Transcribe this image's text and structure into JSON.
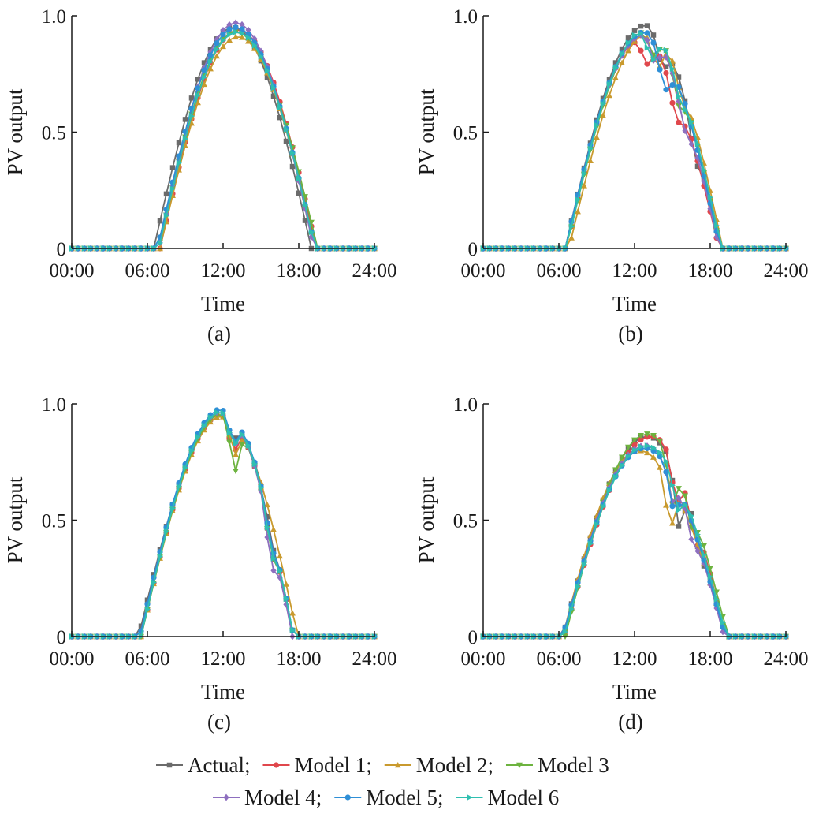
{
  "chart_data": [
    {
      "panel": "(a)",
      "type": "line",
      "xlabel": "Time",
      "ylabel": "PV output",
      "xlim": [
        0,
        24
      ],
      "ylim": [
        0,
        1.0
      ],
      "x_tick_labels": [
        "00:00",
        "06:00",
        "12:00",
        "18:00",
        "24:00"
      ],
      "y_tick_labels": [
        "0",
        "0.5",
        "1.0"
      ],
      "day_shape": {
        "start": 6.75,
        "end": 19.25,
        "peak_time": 13.0,
        "peak": 0.95
      },
      "series": [
        {
          "name": "Actual",
          "start": 6.5,
          "end": 19.0,
          "peak_time": 12.8,
          "peak": 0.95,
          "notches": []
        },
        {
          "name": "Model 1",
          "start": 7.0,
          "end": 19.4,
          "peak_time": 13.2,
          "peak": 0.94,
          "notches": []
        },
        {
          "name": "Model 2",
          "start": 7.0,
          "end": 19.3,
          "peak_time": 13.2,
          "peak": 0.91,
          "notches": []
        },
        {
          "name": "Model 3",
          "start": 6.9,
          "end": 19.5,
          "peak_time": 13.0,
          "peak": 0.93,
          "notches": []
        },
        {
          "name": "Model 4",
          "start": 6.9,
          "end": 19.2,
          "peak_time": 13.0,
          "peak": 0.97,
          "notches": []
        },
        {
          "name": "Model 5",
          "start": 6.8,
          "end": 19.3,
          "peak_time": 13.0,
          "peak": 0.95,
          "notches": []
        },
        {
          "name": "Model 6",
          "start": 6.9,
          "end": 19.3,
          "peak_time": 13.1,
          "peak": 0.93,
          "notches": []
        }
      ]
    },
    {
      "panel": "(b)",
      "type": "line",
      "xlabel": "Time",
      "ylabel": "PV output",
      "xlim": [
        0,
        24
      ],
      "ylim": [
        0,
        1.0
      ],
      "x_tick_labels": [
        "00:00",
        "06:00",
        "12:00",
        "18:00",
        "24:00"
      ],
      "y_tick_labels": [
        "0",
        "0.5",
        "1.0"
      ],
      "series": [
        {
          "name": "Actual",
          "start": 6.5,
          "end": 18.8,
          "peak_time": 12.9,
          "peak": 0.96,
          "notches": [
            [
              14.2,
              0.12,
              0.6
            ],
            [
              16.8,
              0.1,
              0.6
            ]
          ]
        },
        {
          "name": "Model 1",
          "start": 6.6,
          "end": 18.7,
          "peak_time": 12.5,
          "peak": 0.9,
          "notches": [
            [
              13.0,
              0.1,
              0.6
            ],
            [
              15.3,
              0.12,
              0.7
            ]
          ]
        },
        {
          "name": "Model 2",
          "start": 6.8,
          "end": 19.0,
          "peak_time": 13.2,
          "peak": 0.93,
          "notches": [
            [
              13.8,
              0.14,
              0.6
            ],
            [
              15.8,
              0.08,
              0.6
            ]
          ]
        },
        {
          "name": "Model 3",
          "start": 6.6,
          "end": 18.8,
          "peak_time": 13.0,
          "peak": 0.94,
          "notches": [
            [
              13.5,
              0.1,
              0.6
            ],
            [
              15.5,
              0.12,
              0.6
            ]
          ]
        },
        {
          "name": "Model 4",
          "start": 6.5,
          "end": 18.7,
          "peak_time": 12.8,
          "peak": 0.92,
          "notches": [
            [
              13.6,
              0.1,
              0.5
            ],
            [
              16.0,
              0.1,
              0.7
            ]
          ]
        },
        {
          "name": "Model 5",
          "start": 6.5,
          "end": 18.8,
          "peak_time": 12.8,
          "peak": 0.93,
          "notches": [
            [
              14.4,
              0.16,
              0.7
            ]
          ]
        },
        {
          "name": "Model 6",
          "start": 6.6,
          "end": 18.9,
          "peak_time": 12.9,
          "peak": 0.94,
          "notches": [
            [
              13.4,
              0.12,
              0.6
            ],
            [
              15.6,
              0.08,
              0.6
            ]
          ]
        }
      ]
    },
    {
      "panel": "(c)",
      "type": "line",
      "xlabel": "Time",
      "ylabel": "PV output",
      "xlim": [
        0,
        24
      ],
      "ylim": [
        0,
        1.0
      ],
      "x_tick_labels": [
        "00:00",
        "06:00",
        "12:00",
        "18:00",
        "24:00"
      ],
      "y_tick_labels": [
        "0",
        "0.5",
        "1.0"
      ],
      "series": [
        {
          "name": "Actual",
          "start": 5.3,
          "end": 17.6,
          "peak_time": 12.0,
          "peak": 0.96,
          "notches": [
            [
              12.7,
              0.1,
              0.5
            ],
            [
              15.9,
              0.05,
              0.4
            ]
          ]
        },
        {
          "name": "Model 1",
          "start": 5.5,
          "end": 17.6,
          "peak_time": 12.0,
          "peak": 0.96,
          "notches": [
            [
              12.8,
              0.14,
              0.5
            ],
            [
              15.8,
              0.1,
              0.5
            ]
          ]
        },
        {
          "name": "Model 2",
          "start": 5.5,
          "end": 17.9,
          "peak_time": 12.0,
          "peak": 0.95,
          "notches": [
            [
              12.9,
              0.14,
              0.5
            ]
          ]
        },
        {
          "name": "Model 3",
          "start": 5.5,
          "end": 17.6,
          "peak_time": 12.0,
          "peak": 0.96,
          "notches": [
            [
              12.9,
              0.22,
              0.5
            ],
            [
              15.8,
              0.1,
              0.5
            ]
          ]
        },
        {
          "name": "Model 4",
          "start": 5.4,
          "end": 17.5,
          "peak_time": 12.0,
          "peak": 0.97,
          "notches": [
            [
              12.8,
              0.12,
              0.5
            ],
            [
              15.8,
              0.14,
              0.5
            ]
          ]
        },
        {
          "name": "Model 5",
          "start": 5.4,
          "end": 17.6,
          "peak_time": 12.0,
          "peak": 0.98,
          "notches": [
            [
              12.8,
              0.12,
              0.5
            ],
            [
              15.8,
              0.08,
              0.5
            ]
          ]
        },
        {
          "name": "Model 6",
          "start": 5.5,
          "end": 17.6,
          "peak_time": 12.0,
          "peak": 0.97,
          "notches": [
            [
              12.8,
              0.12,
              0.5
            ],
            [
              15.8,
              0.1,
              0.5
            ]
          ]
        }
      ]
    },
    {
      "panel": "(d)",
      "type": "line",
      "xlabel": "Time",
      "ylabel": "PV output",
      "xlim": [
        0,
        24
      ],
      "ylim": [
        0,
        1.0
      ],
      "x_tick_labels": [
        "00:00",
        "06:00",
        "12:00",
        "18:00",
        "24:00"
      ],
      "y_tick_labels": [
        "0",
        "0.5",
        "1.0"
      ],
      "series": [
        {
          "name": "Actual",
          "start": 6.3,
          "end": 19.2,
          "peak_time": 13.0,
          "peak": 0.86,
          "notches": [
            [
              15.5,
              0.22,
              0.5
            ],
            [
              17.2,
              0.08,
              0.5
            ]
          ]
        },
        {
          "name": "Model 1",
          "start": 6.4,
          "end": 19.2,
          "peak_time": 13.3,
          "peak": 0.86,
          "notches": [
            [
              15.3,
              0.16,
              0.5
            ],
            [
              16.8,
              0.1,
              0.5
            ]
          ]
        },
        {
          "name": "Model 2",
          "start": 6.3,
          "end": 19.3,
          "peak_time": 12.3,
          "peak": 0.8,
          "notches": [
            [
              14.8,
              0.2,
              0.5
            ]
          ]
        },
        {
          "name": "Model 3",
          "start": 6.5,
          "end": 19.4,
          "peak_time": 13.0,
          "peak": 0.87,
          "notches": [
            [
              15.0,
              0.2,
              0.5
            ],
            [
              16.5,
              0.1,
              0.5
            ]
          ]
        },
        {
          "name": "Model 4",
          "start": 6.3,
          "end": 19.1,
          "peak_time": 12.8,
          "peak": 0.82,
          "notches": [
            [
              15.0,
              0.12,
              0.5
            ],
            [
              16.6,
              0.08,
              0.5
            ]
          ]
        },
        {
          "name": "Model 5",
          "start": 6.3,
          "end": 19.2,
          "peak_time": 12.8,
          "peak": 0.81,
          "notches": [
            [
              15.1,
              0.14,
              0.5
            ]
          ]
        },
        {
          "name": "Model 6",
          "start": 6.4,
          "end": 19.3,
          "peak_time": 12.9,
          "peak": 0.82,
          "notches": [
            [
              15.4,
              0.12,
              0.5
            ]
          ]
        }
      ]
    }
  ],
  "legend": {
    "rows": [
      [
        {
          "label": "Actual;",
          "series": "Actual",
          "color": "#6b6b6b",
          "marker": "square"
        },
        {
          "label": "Model 1;",
          "series": "Model 1",
          "color": "#e0474c",
          "marker": "circle"
        },
        {
          "label": "Model 2;",
          "series": "Model 2",
          "color": "#c99a2e",
          "marker": "triangle-up"
        },
        {
          "label": "Model 3",
          "series": "Model 3",
          "color": "#6db33f",
          "marker": "triangle-down"
        }
      ],
      [
        {
          "label": "Model 4;",
          "series": "Model 4",
          "color": "#8e6fbf",
          "marker": "diamond"
        },
        {
          "label": "Model 5;",
          "series": "Model 5",
          "color": "#2f8fd6",
          "marker": "circle"
        },
        {
          "label": "Model 6",
          "series": "Model 6",
          "color": "#2fbfb0",
          "marker": "triangle-right"
        }
      ]
    ]
  },
  "colors": {
    "Actual": "#6b6b6b",
    "Model 1": "#e0474c",
    "Model 2": "#c99a2e",
    "Model 3": "#6db33f",
    "Model 4": "#8e6fbf",
    "Model 5": "#2f8fd6",
    "Model 6": "#2fbfb0",
    "axis": "#1a1a1a"
  }
}
